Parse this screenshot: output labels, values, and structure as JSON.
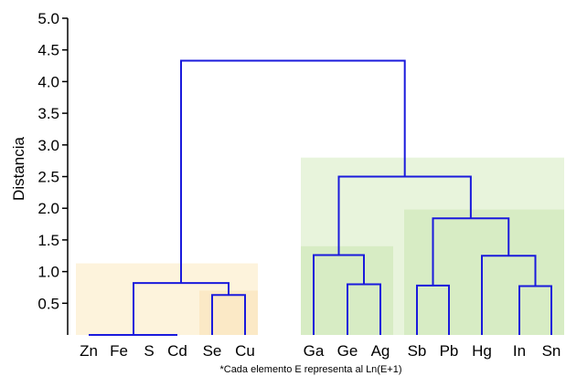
{
  "chart_data": {
    "type": "dendrogram",
    "ylabel": "Distancia",
    "ylim": [
      0,
      5.0
    ],
    "yticks": [
      "0.5",
      "1.0",
      "1.5",
      "2.0",
      "2.5",
      "3.0",
      "3.5",
      "4.0",
      "4.5",
      "5.0"
    ],
    "ytick_values": [
      0.5,
      1.0,
      1.5,
      2.0,
      2.5,
      3.0,
      3.5,
      4.0,
      4.5,
      5.0
    ],
    "leaves": [
      "Zn",
      "Fe",
      "S",
      "Cd",
      "Se",
      "Cu",
      "Ga",
      "Ge",
      "Ag",
      "Sb",
      "Pb",
      "Hg",
      "In",
      "Sn"
    ],
    "merges": [
      {
        "left": "Zn",
        "right": "Fe",
        "height": 0.0
      },
      {
        "left": "S",
        "right": "Cd",
        "height": 0.0
      },
      {
        "left": "Zn-Fe",
        "right": "S-Cd",
        "height": 0.0
      },
      {
        "left": "Se",
        "right": "Cu",
        "height": 0.63
      },
      {
        "left": "Zn-Fe-S-Cd",
        "right": "Se-Cu",
        "height": 0.82
      },
      {
        "left": "Ge",
        "right": "Ag",
        "height": 0.8
      },
      {
        "left": "Ga",
        "right": "Ge-Ag",
        "height": 1.26
      },
      {
        "left": "Sb",
        "right": "Pb",
        "height": 0.78
      },
      {
        "left": "In",
        "right": "Sn",
        "height": 0.77
      },
      {
        "left": "Hg",
        "right": "In-Sn",
        "height": 1.25
      },
      {
        "left": "Sb-Pb",
        "right": "Hg-In-Sn",
        "height": 1.84
      },
      {
        "left": "Ga-Ge-Ag",
        "right": "Sb-Pb-Hg-In-Sn",
        "height": 2.5
      },
      {
        "left": "Zn-Fe-S-Cd-Se-Cu",
        "right": "Ga-Ge-Ag-Sb-Pb-Hg-In-Sn",
        "height": 4.33
      }
    ],
    "cluster_regions": [
      {
        "leaves": [
          "Zn",
          "Cu"
        ],
        "height": 1.13,
        "color": "#fdf3dc"
      },
      {
        "leaves": [
          "Se",
          "Cu"
        ],
        "height": 0.7,
        "color": "#fbe9c6"
      },
      {
        "leaves": [
          "Ga",
          "Sn"
        ],
        "height": 2.8,
        "color": "#e8f4dc"
      },
      {
        "leaves": [
          "Ga",
          "Ag"
        ],
        "height": 1.4,
        "color": "#d7ecc4"
      },
      {
        "leaves": [
          "Sb",
          "Sn"
        ],
        "height": 1.98,
        "color": "#d7ecc4"
      }
    ],
    "link_color": "#1a1adc",
    "footnote": "*Cada elemento E representa al Ln(E+1)"
  }
}
